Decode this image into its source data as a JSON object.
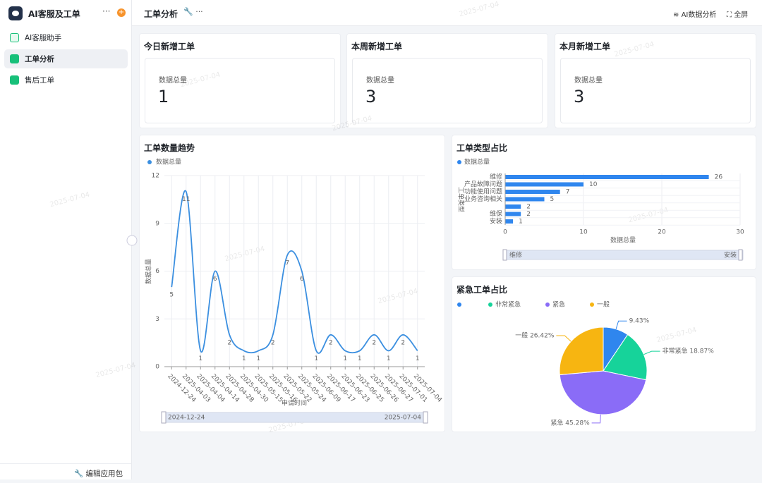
{
  "watermark": "2025-07-04",
  "sidebar": {
    "title": "AI客服及工单",
    "nav": [
      "AI客服助手",
      "工单分析",
      "售后工单"
    ],
    "footer": "编辑应用包"
  },
  "header": {
    "title": "工单分析",
    "actions": [
      "AI数据分析",
      "全屏"
    ]
  },
  "stat_cards": [
    {
      "title": "今日新增工单",
      "label": "数据总量",
      "value": 1
    },
    {
      "title": "本周新增工单",
      "label": "数据总量",
      "value": 3
    },
    {
      "title": "本月新增工单",
      "label": "数据总量",
      "value": 3
    }
  ],
  "chart_data": [
    {
      "type": "line",
      "title": "工单数量趋势",
      "categories": [
        "2024-12-24",
        "2025-04-03",
        "2025-04-04",
        "2025-04-14",
        "2025-04-28",
        "2025-04-30",
        "2025-05-15",
        "2025-05-16",
        "2025-05-22",
        "2025-05-24",
        "2025-06-09",
        "2025-06-17",
        "2025-06-23",
        "2025-06-25",
        "2025-06-26",
        "2025-06-27",
        "2025-07-01",
        "2025-07-04"
      ],
      "series": [
        {
          "name": "数据总量",
          "color": "#3b8fe0",
          "values": [
            5,
            11,
            1,
            6,
            2,
            1,
            1,
            2,
            7,
            6,
            1,
            2,
            1,
            1,
            2,
            1,
            2,
            1
          ]
        }
      ],
      "ylim": [
        0,
        12
      ],
      "yticks": [
        0,
        3,
        6,
        9,
        12
      ],
      "ylabel": "数据总量",
      "xlabel": "申请时间",
      "grid": true,
      "smooth": true,
      "range_labels": [
        "2024-12-24",
        "2025-07-04"
      ]
    },
    {
      "type": "bar",
      "orientation": "horizontal",
      "title": "工单类型占比",
      "categories": [
        "维修",
        "产品故障问题",
        "功能使用问题",
        "业务咨询相关",
        null,
        "维保",
        "安装"
      ],
      "series": [
        {
          "name": "数据总量",
          "color": "#2f86ee",
          "values": [
            26,
            10,
            7,
            5,
            2,
            2,
            1
          ]
        }
      ],
      "xlim": [
        0,
        30
      ],
      "xticks": [
        0,
        10,
        20,
        30
      ],
      "xlabel": "数据总量",
      "ylabel": "工单类型",
      "grid": true,
      "range_labels": [
        "维修",
        "安装"
      ]
    },
    {
      "type": "pie",
      "title": "紧急工单占比",
      "categories": [
        null,
        "非常紧急",
        "紧急",
        "一般"
      ],
      "values": [
        9.43,
        18.87,
        45.28,
        26.42
      ],
      "value_labels": [
        "9.43%",
        "非常紧急 18.87%",
        "紧急 45.28%",
        "一般 26.42%"
      ],
      "colors": [
        "#2f86ee",
        "#16d39a",
        "#8a6cf7",
        "#f7b511"
      ]
    }
  ]
}
